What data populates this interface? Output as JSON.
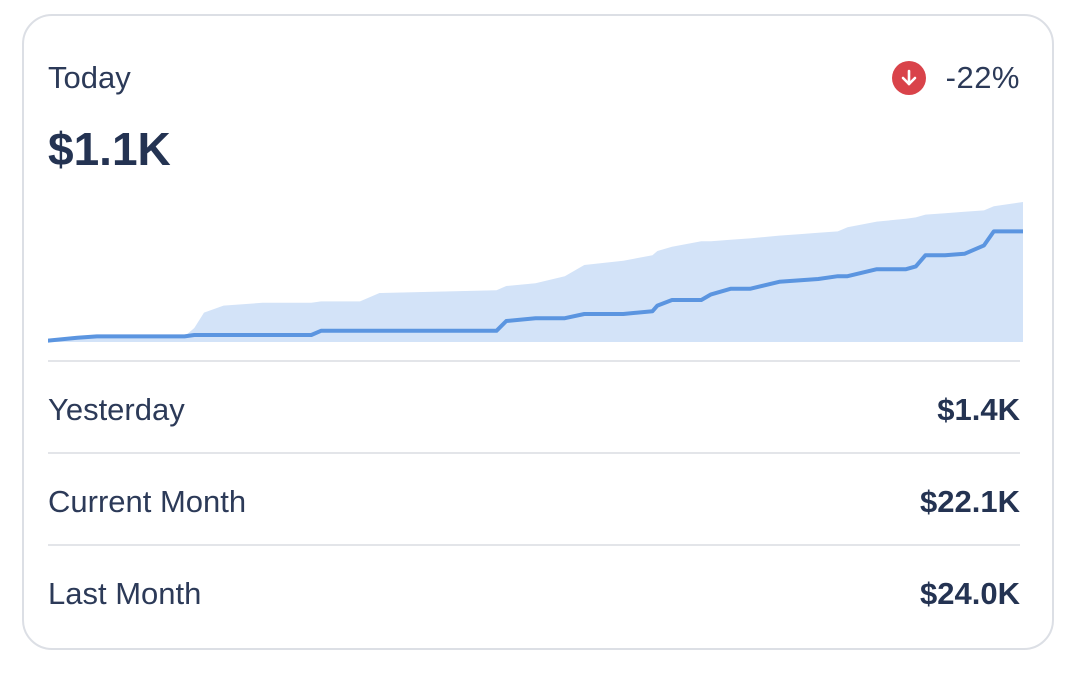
{
  "summary": {
    "period_label": "Today",
    "amount": "$1.1K",
    "change": {
      "value": "-22%",
      "direction": "down",
      "icon": "arrow-down-circle-icon",
      "color": "#d9434a"
    }
  },
  "chart_data": {
    "type": "area",
    "title": "",
    "xlabel": "",
    "ylabel": "",
    "ylim": [
      0,
      1
    ],
    "grid": false,
    "legend": "none",
    "colors": {
      "line": "#5b95e0",
      "band": "#d3e3f8"
    },
    "x": [
      0,
      3,
      5,
      9,
      14,
      15,
      16,
      18,
      22,
      27,
      28,
      32,
      34,
      46,
      47,
      50,
      53,
      55,
      59,
      62,
      62.5,
      64,
      67,
      68,
      70,
      72,
      75,
      77,
      79,
      81,
      82,
      85,
      88,
      89,
      90,
      92,
      94,
      96,
      97,
      100
    ],
    "series": [
      {
        "values": [
          0.01,
          0.03,
          0.04,
          0.04,
          0.04,
          0.05,
          0.05,
          0.05,
          0.05,
          0.05,
          0.08,
          0.08,
          0.08,
          0.08,
          0.15,
          0.17,
          0.17,
          0.2,
          0.2,
          0.22,
          0.26,
          0.3,
          0.3,
          0.34,
          0.38,
          0.38,
          0.43,
          0.44,
          0.45,
          0.47,
          0.47,
          0.52,
          0.52,
          0.54,
          0.62,
          0.62,
          0.63,
          0.69,
          0.79,
          0.79
        ]
      },
      {
        "values": [
          0.02,
          0.04,
          0.04,
          0.04,
          0.04,
          0.1,
          0.21,
          0.26,
          0.28,
          0.28,
          0.29,
          0.29,
          0.35,
          0.37,
          0.4,
          0.42,
          0.47,
          0.55,
          0.58,
          0.62,
          0.65,
          0.68,
          0.72,
          0.72,
          0.73,
          0.74,
          0.76,
          0.77,
          0.78,
          0.79,
          0.82,
          0.86,
          0.88,
          0.89,
          0.91,
          0.92,
          0.93,
          0.94,
          0.97,
          1.0
        ]
      }
    ]
  },
  "rows": [
    {
      "label": "Yesterday",
      "value": "$1.4K"
    },
    {
      "label": "Current Month",
      "value": "$22.1K"
    },
    {
      "label": "Last Month",
      "value": "$24.0K"
    }
  ]
}
